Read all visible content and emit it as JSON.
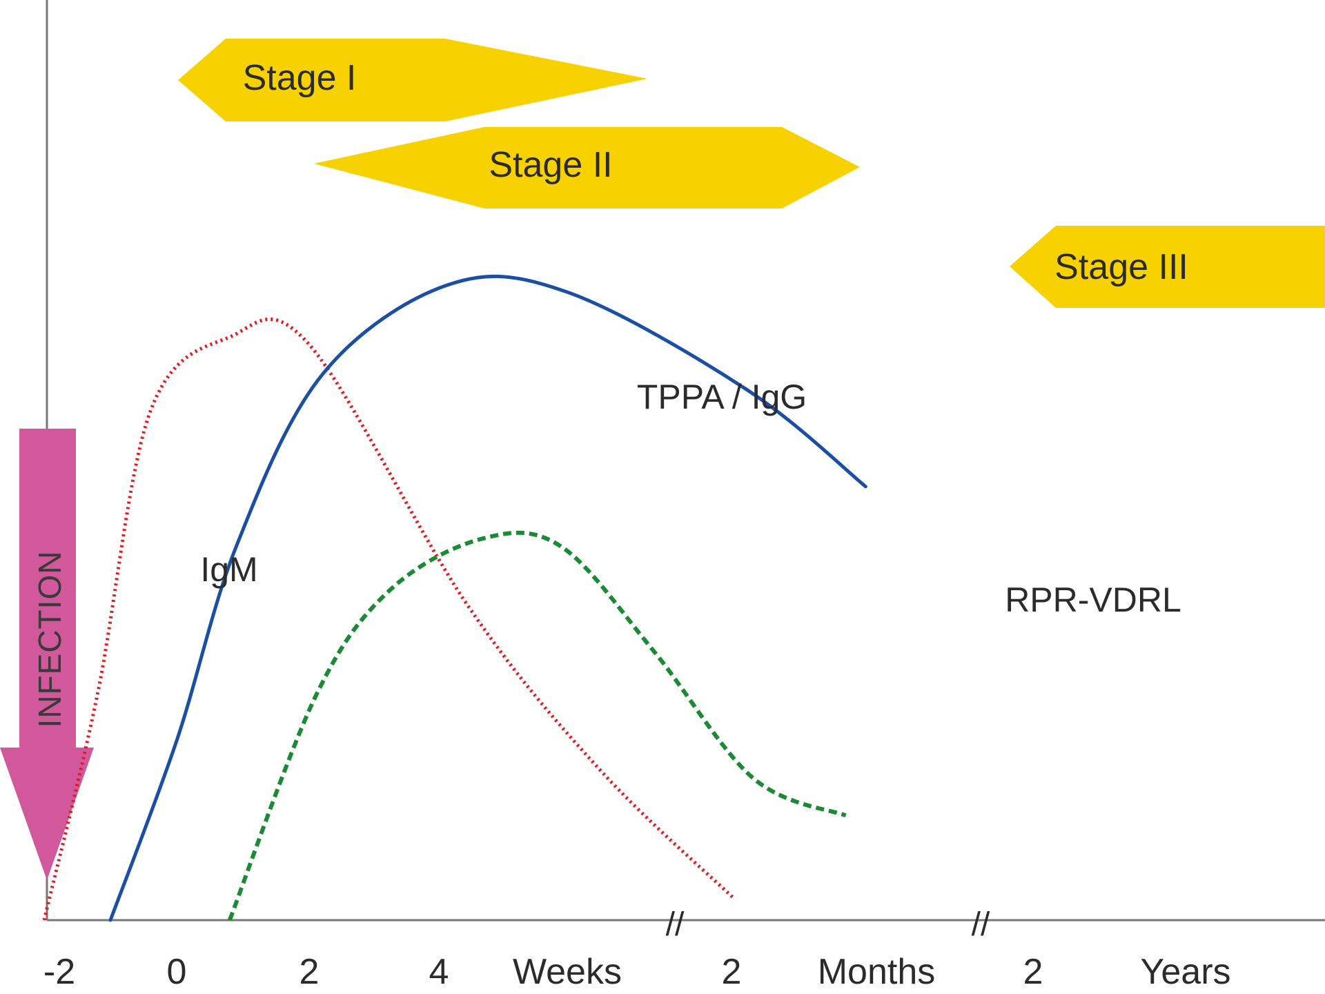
{
  "chart_data": {
    "type": "line",
    "title": "",
    "xlabel": "",
    "ylabel": "",
    "x_tick_labels": [
      "-2",
      "0",
      "2",
      "4",
      "Weeks",
      "2",
      "Months",
      "2",
      "Years"
    ],
    "axis_breaks": [
      "//",
      "//"
    ],
    "infection_marker": {
      "label": "INFECTION",
      "color": "#d0589b",
      "at_tick": "0"
    },
    "stages": [
      {
        "label": "Stage I",
        "color": "#f7d200"
      },
      {
        "label": "Stage II",
        "color": "#f7d200"
      },
      {
        "label": "Stage III",
        "color": "#f7d200"
      }
    ],
    "series": [
      {
        "name": "IgM",
        "color": "#e01b22",
        "style": "dotted",
        "points": [
          [
            -2.0,
            0
          ],
          [
            -1.2,
            0.3
          ],
          [
            -0.4,
            0.68
          ],
          [
            0.8,
            0.78
          ],
          [
            2.0,
            0.77
          ],
          [
            4.4,
            0.42
          ],
          [
            6.4,
            0.2
          ],
          [
            8.4,
            0.03
          ]
        ]
      },
      {
        "name": "TPPA / IgG",
        "color": "#1a4fa3",
        "style": "solid",
        "points": [
          [
            -1.0,
            0
          ],
          [
            0.0,
            0.24
          ],
          [
            0.9,
            0.5
          ],
          [
            2.2,
            0.73
          ],
          [
            4.1,
            0.85
          ],
          [
            5.9,
            0.84
          ],
          [
            8.6,
            0.71
          ],
          [
            10.4,
            0.58
          ]
        ]
      },
      {
        "name": "RPR-VDRL",
        "color": "#1a8a35",
        "style": "dashed",
        "points": [
          [
            0.8,
            0
          ],
          [
            2.1,
            0.3
          ],
          [
            3.2,
            0.44
          ],
          [
            4.6,
            0.51
          ],
          [
            5.8,
            0.5
          ],
          [
            7.2,
            0.36
          ],
          [
            8.7,
            0.19
          ],
          [
            10.1,
            0.14
          ]
        ]
      }
    ]
  }
}
